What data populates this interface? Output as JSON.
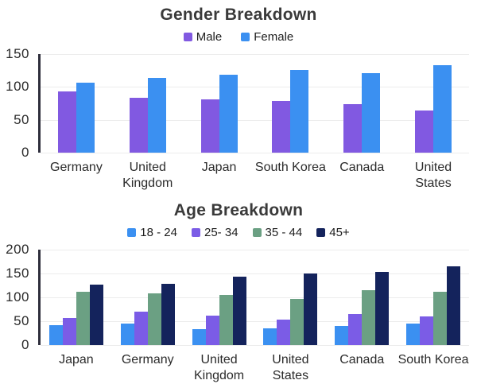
{
  "page_background": "#ffffff",
  "axis_color": "#2e2e3c",
  "gridline_color": "#ececec",
  "chart_data": [
    {
      "type": "bar",
      "title": "Gender Breakdown",
      "categories": [
        "Germany",
        "United Kingdom",
        "Japan",
        "South Korea",
        "Canada",
        "United States"
      ],
      "series": [
        {
          "name": "Male",
          "color": "#8159E1",
          "values": [
            93,
            84,
            81,
            79,
            74,
            64
          ]
        },
        {
          "name": "Female",
          "color": "#3B90F1",
          "values": [
            107,
            114,
            118,
            126,
            121,
            133
          ]
        }
      ],
      "xlabel": "",
      "ylabel": "",
      "ylim": [
        0,
        150
      ],
      "yticks": [
        0,
        50,
        100,
        150
      ],
      "grid": true,
      "legend_position": "top"
    },
    {
      "type": "bar",
      "title": "Age Breakdown",
      "categories": [
        "Japan",
        "Germany",
        "United Kingdom",
        "United States",
        "Canada",
        "South Korea"
      ],
      "series": [
        {
          "name": "18 - 24",
          "color": "#3B90F1",
          "values": [
            42,
            45,
            33,
            35,
            40,
            45
          ]
        },
        {
          "name": "25- 34",
          "color": "#7B5CE6",
          "values": [
            57,
            70,
            62,
            53,
            65,
            60
          ]
        },
        {
          "name": "35 - 44",
          "color": "#6BA083",
          "values": [
            112,
            109,
            105,
            96,
            115,
            112
          ]
        },
        {
          "name": "45+",
          "color": "#14235C",
          "values": [
            126,
            128,
            143,
            150,
            153,
            165
          ]
        }
      ],
      "xlabel": "",
      "ylabel": "",
      "ylim": [
        0,
        200
      ],
      "yticks": [
        0,
        50,
        100,
        150,
        200
      ],
      "grid": true,
      "legend_position": "top"
    }
  ]
}
